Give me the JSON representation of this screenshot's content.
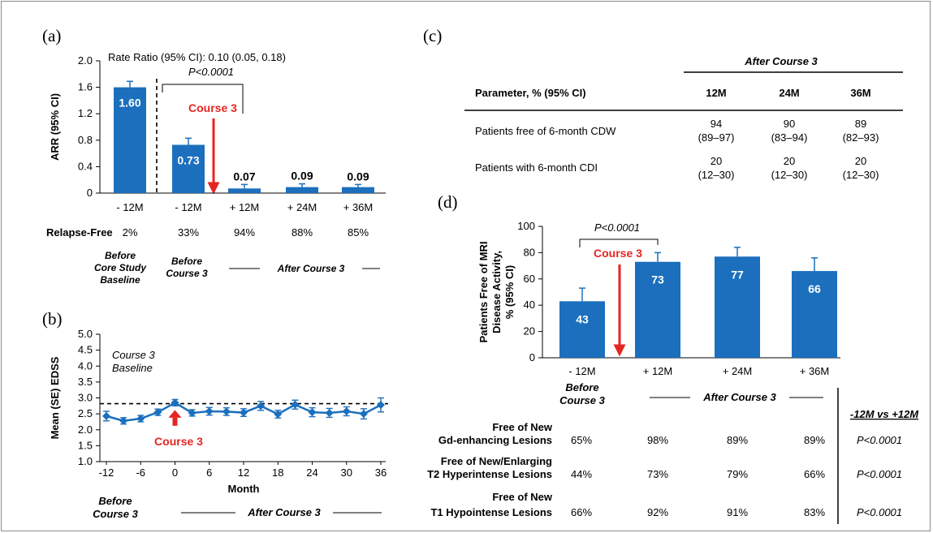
{
  "colors": {
    "bar": "#1b6fbd",
    "arrow": "#e52521",
    "line": "#1b6fbd",
    "text": "#000000"
  },
  "panels": {
    "a": {
      "letter": "(a)",
      "rate_ratio": "Rate Ratio (95% CI): 0.10 (0.05, 0.18)",
      "p_value": "P<0.0001",
      "course_label": "Course 3",
      "relapse_free_label": "Relapse-Free",
      "relapse_free": [
        "2%",
        "33%",
        "94%",
        "88%",
        "85%"
      ],
      "group_before_core": [
        "Before",
        "Core Study",
        "Baseline"
      ],
      "group_before_course": [
        "Before",
        "Course 3"
      ],
      "group_after": "After Course 3"
    },
    "b": {
      "letter": "(b)",
      "baseline_label": [
        "Course 3",
        "Baseline"
      ],
      "course_label": "Course 3",
      "group_before": [
        "Before",
        "Course 3"
      ],
      "group_after": "After Course 3"
    },
    "c": {
      "letter": "(c)",
      "header_group": "After Course 3",
      "columns": [
        "Parameter, % (95% CI)",
        "12M",
        "24M",
        "36M"
      ],
      "rows": [
        {
          "label": "Patients free of 6-month CDW",
          "cells": [
            [
              "94",
              "(89–97)"
            ],
            [
              "90",
              "(83–94)"
            ],
            [
              "89",
              "(82–93)"
            ]
          ]
        },
        {
          "label": "Patients with 6-month CDI",
          "cells": [
            [
              "20",
              "(12–30)"
            ],
            [
              "20",
              "(12–30)"
            ],
            [
              "20",
              "(12–30)"
            ]
          ]
        }
      ]
    },
    "d": {
      "letter": "(d)",
      "p_value": "P<0.0001",
      "course_label": "Course 3",
      "group_before": [
        "Before",
        "Course 3"
      ],
      "group_after": "After Course 3",
      "compare_header": "-12M vs +12M",
      "rows": [
        {
          "label": [
            "Free of New",
            "Gd-enhancing Lesions"
          ],
          "values": [
            "65%",
            "98%",
            "89%",
            "89%"
          ],
          "p": "P<0.0001"
        },
        {
          "label": [
            "Free of New/Enlarging",
            "T2 Hyperintense Lesions"
          ],
          "values": [
            "44%",
            "73%",
            "79%",
            "66%"
          ],
          "p": "P<0.0001"
        },
        {
          "label": [
            "Free of New",
            "T1 Hypointense Lesions"
          ],
          "values": [
            "66%",
            "92%",
            "91%",
            "83%"
          ],
          "p": "P<0.0001"
        }
      ]
    }
  },
  "chart_data": [
    {
      "id": "a",
      "type": "bar",
      "categories": [
        "- 12M",
        "- 12M",
        "+ 12M",
        "+ 24M",
        "+ 36M"
      ],
      "values": [
        1.6,
        0.73,
        0.07,
        0.09,
        0.09
      ],
      "labels": [
        "1.60",
        "0.73",
        "0.07",
        "0.09",
        "0.09"
      ],
      "error_upper": [
        1.69,
        0.83,
        0.13,
        0.14,
        0.13
      ],
      "ylabel": "ARR (95% CI)",
      "ylim": [
        0,
        2.0
      ],
      "yticks": [
        0,
        0.4,
        0.8,
        1.2,
        1.6,
        2.0
      ],
      "ytick_labels": [
        "0",
        "0.4",
        "0.8",
        "1.2",
        "1.6",
        "2.0"
      ]
    },
    {
      "id": "b",
      "type": "line",
      "x": [
        -12,
        -9,
        -6,
        -3,
        0,
        3,
        6,
        9,
        12,
        15,
        18,
        21,
        24,
        27,
        30,
        33,
        36
      ],
      "y": [
        2.43,
        2.28,
        2.35,
        2.55,
        2.85,
        2.53,
        2.58,
        2.57,
        2.54,
        2.75,
        2.49,
        2.79,
        2.55,
        2.53,
        2.58,
        2.5,
        2.78
      ],
      "err": [
        0.15,
        0.1,
        0.1,
        0.1,
        0.1,
        0.1,
        0.12,
        0.12,
        0.12,
        0.14,
        0.12,
        0.14,
        0.14,
        0.14,
        0.14,
        0.16,
        0.22
      ],
      "baseline": 2.82,
      "xlabel": "Month",
      "ylabel": "Mean (SE) EDSS",
      "xlim": [
        -12,
        36
      ],
      "ylim": [
        1.0,
        5.0
      ],
      "xticks": [
        -12,
        -6,
        0,
        6,
        12,
        18,
        24,
        30,
        36
      ],
      "xtick_labels": [
        "-12",
        "-6",
        "0",
        "6",
        "12",
        "18",
        "24",
        "30",
        "36"
      ],
      "yticks": [
        1.0,
        1.5,
        2.0,
        2.5,
        3.0,
        3.5,
        4.0,
        4.5,
        5.0
      ],
      "ytick_labels": [
        "1.0",
        "1.5",
        "2.0",
        "2.5",
        "3.0",
        "3.5",
        "4.0",
        "4.5",
        "5.0"
      ],
      "grid": false
    },
    {
      "id": "d",
      "type": "bar",
      "categories": [
        "- 12M",
        "+ 12M",
        "+ 24M",
        "+ 36M"
      ],
      "values": [
        43,
        73,
        77,
        66
      ],
      "labels": [
        "43",
        "73",
        "77",
        "66"
      ],
      "error_upper": [
        53,
        80,
        84,
        76
      ],
      "ylabel": [
        "Patients Free of MRI",
        "Disease Activity,",
        "% (95% CI)"
      ],
      "ylim": [
        0,
        100
      ],
      "yticks": [
        0,
        20,
        40,
        60,
        80,
        100
      ],
      "ytick_labels": [
        "0",
        "20",
        "40",
        "60",
        "80",
        "100"
      ]
    }
  ]
}
